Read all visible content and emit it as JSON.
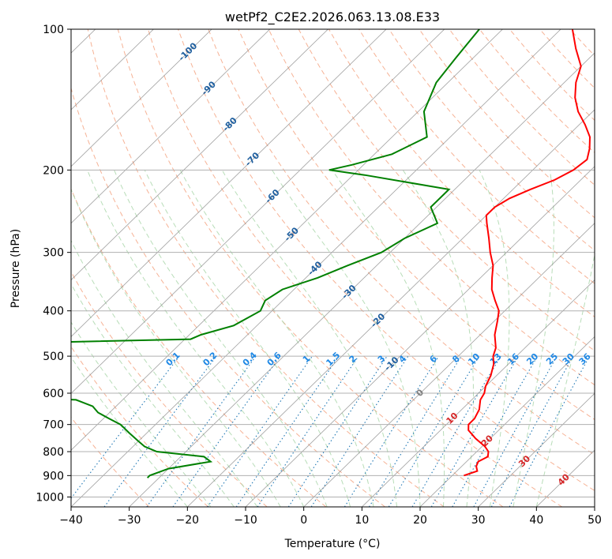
{
  "chart_data": {
    "type": "line",
    "title": "wetPf2_C2E2.2026.063.13.08.E33",
    "xlabel": "Temperature (°C)",
    "ylabel": "Pressure (hPa)",
    "xlim": [
      -40,
      50
    ],
    "ylim": [
      1050,
      100
    ],
    "yscale": "log",
    "skew": true,
    "grid": true,
    "x_ticks": [
      -40,
      -30,
      -20,
      -10,
      0,
      10,
      20,
      30,
      40,
      50
    ],
    "x_tick_labels": [
      "−40",
      "−30",
      "−20",
      "−10",
      "0",
      "10",
      "20",
      "30",
      "40",
      "50"
    ],
    "y_ticks": [
      100,
      200,
      300,
      400,
      500,
      600,
      700,
      800,
      900,
      1000
    ],
    "y_tick_labels": [
      "100",
      "200",
      "300",
      "400",
      "500",
      "600",
      "700",
      "800",
      "900",
      "1000"
    ],
    "isotherm_labels": [
      "-100",
      "-90",
      "-80",
      "-70",
      "-60",
      "-50",
      "-40",
      "-30",
      "-20",
      "-10",
      "0",
      "10",
      "20",
      "30",
      "40"
    ],
    "mixing_ratio_labels": [
      "0.1",
      "0.2",
      "0.4",
      "0.6",
      "1",
      "1.5",
      "2",
      "3",
      "4",
      "6",
      "8",
      "10",
      "13",
      "16",
      "20",
      "25",
      "30",
      "36"
    ],
    "colors": {
      "temperature": "#ff0000",
      "dewpoint": "#008000",
      "isotherm": "#808080",
      "dry_adiabat": "#f4a582",
      "moist_adiabat": "#a6d4a6",
      "mixing_ratio": "#1f77b4",
      "isotherm_label": "#1f5f9f",
      "mixing_label": "#1e88e5",
      "zero_label": "#808080",
      "warm_label": "#d62728"
    },
    "series": [
      {
        "key": "temperature",
        "pressure": [
          900,
          880,
          860,
          840,
          820,
          800,
          780,
          750,
          720,
          700,
          680,
          650,
          620,
          600,
          580,
          550,
          520,
          500,
          480,
          450,
          420,
          400,
          380,
          360,
          340,
          320,
          300,
          280,
          260,
          250,
          240,
          230,
          220,
          210,
          200,
          190,
          180,
          170,
          160,
          150,
          140,
          130,
          120,
          110,
          100
        ],
        "values": [
          22,
          23.5,
          22.5,
          22,
          22.8,
          22,
          20.5,
          17.5,
          14.8,
          13.8,
          13.8,
          13,
          11.5,
          11,
          10,
          9,
          7.5,
          6,
          5,
          2.5,
          0.5,
          -1,
          -3.5,
          -6,
          -8,
          -10,
          -12.8,
          -15.5,
          -18.5,
          -20,
          -20,
          -19,
          -17,
          -14.5,
          -13,
          -12.5,
          -14,
          -16,
          -19,
          -22.5,
          -25.5,
          -28,
          -30,
          -34,
          -38
        ]
      },
      {
        "key": "dewpoint",
        "pressure": [
          910,
          900,
          870,
          840,
          820,
          800,
          780,
          760,
          730,
          700,
          680,
          660,
          640,
          620,
          600,
          590,
          570,
          560,
          550,
          540,
          520,
          510,
          500,
          490,
          480,
          470,
          460,
          450,
          430,
          400,
          380,
          360,
          340,
          320,
          300,
          280,
          260,
          240,
          220,
          205,
          200,
          195,
          185,
          170,
          150,
          130,
          115,
          100
        ],
        "values": [
          -32,
          -32,
          -30,
          -24,
          -26,
          -35,
          -38,
          -40,
          -43,
          -46,
          -49,
          -52,
          -54,
          -58,
          -89,
          -93,
          -86,
          -80,
          -91,
          -95,
          -100,
          -95,
          -72,
          -70,
          -80,
          -82,
          -49,
          -48,
          -44,
          -42,
          -43,
          -42,
          -38,
          -35,
          -31.5,
          -30,
          -27,
          -31,
          -31,
          -48,
          -55,
          -52,
          -47,
          -44,
          -49,
          -52,
          -53,
          -54
        ]
      }
    ]
  }
}
